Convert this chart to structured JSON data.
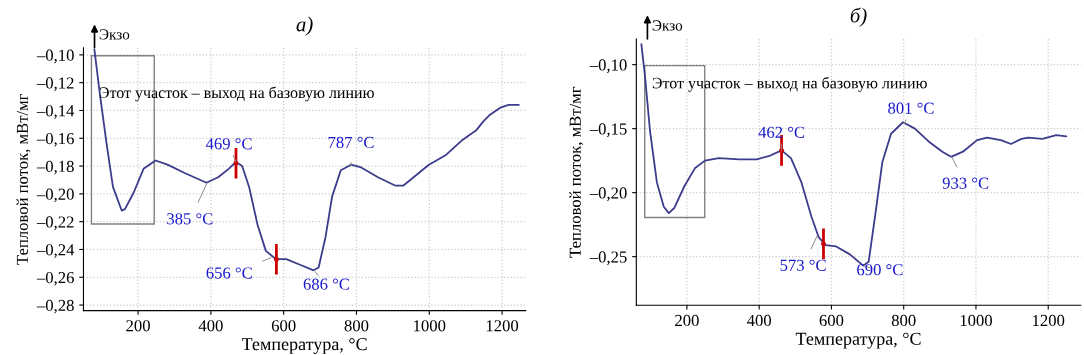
{
  "chart_data": [
    {
      "type": "line",
      "title": "а)",
      "xlabel": "Температура, °C",
      "ylabel": "Тепловой поток, мВт/мг",
      "xlim": [
        50,
        1265
      ],
      "ylim": [
        -0.284,
        -0.095
      ],
      "xticks": [
        200,
        400,
        600,
        800,
        1000,
        1200
      ],
      "yticks": [
        {
          "value": -0.28,
          "label": "–0,28"
        },
        {
          "value": -0.26,
          "label": "–0,26"
        },
        {
          "value": -0.24,
          "label": "–0,24"
        },
        {
          "value": -0.22,
          "label": "–0,22"
        },
        {
          "value": -0.2,
          "label": "–0,20"
        },
        {
          "value": -0.18,
          "label": "–0,18"
        },
        {
          "value": -0.16,
          "label": "–0,16"
        },
        {
          "value": -0.14,
          "label": "–0,14"
        },
        {
          "value": -0.12,
          "label": "–0,12"
        },
        {
          "value": -0.1,
          "label": "–0,10"
        }
      ],
      "grid": true,
      "series": [
        {
          "color": "#3c3c8c",
          "x": [
            80,
            94,
            113,
            131,
            155,
            164,
            188,
            215,
            248,
            281,
            328,
            388,
            420,
            449,
            469,
            486,
            505,
            528,
            551,
            579,
            607,
            645,
            682,
            696,
            715,
            733,
            757,
            785,
            813,
            859,
            906,
            929,
            962,
            999,
            1046,
            1092,
            1130,
            1148,
            1167,
            1195,
            1218,
            1246
          ],
          "values": [
            -0.096,
            -0.126,
            -0.163,
            -0.195,
            -0.212,
            -0.211,
            -0.199,
            -0.182,
            -0.176,
            -0.179,
            -0.185,
            -0.192,
            -0.188,
            -0.182,
            -0.177,
            -0.18,
            -0.195,
            -0.222,
            -0.241,
            -0.247,
            -0.247,
            -0.251,
            -0.255,
            -0.253,
            -0.231,
            -0.202,
            -0.183,
            -0.179,
            -0.181,
            -0.188,
            -0.194,
            -0.194,
            -0.187,
            -0.179,
            -0.172,
            -0.161,
            -0.154,
            -0.148,
            -0.143,
            -0.138,
            -0.136,
            -0.136
          ]
        },
        {
          "type": "scatter",
          "color": "#cc0000",
          "x": [
            469,
            580
          ],
          "values": [
            -0.178,
            -0.247
          ],
          "errors": [
            0.011,
            0.011
          ]
        }
      ],
      "annotations": [
        "Экзо",
        "Этот участок – выход на базовую линию",
        {
          "text": "469 °C",
          "x": 469,
          "y": -0.177
        },
        {
          "text": "385 °C",
          "x": 388,
          "y": -0.193
        },
        {
          "text": "656 °C",
          "x": 565,
          "y": -0.246
        },
        {
          "text": "686 °C",
          "x": 687,
          "y": -0.256
        },
        {
          "text": "787 °C",
          "x": 785,
          "y": -0.18
        }
      ]
    },
    {
      "type": "line",
      "title": "б)",
      "xlabel": "Температура, °C",
      "ylabel": "Тепловой поток, мВт/мг",
      "xlim": [
        60,
        1290
      ],
      "ylim": [
        -0.288,
        -0.08
      ],
      "xticks": [
        200,
        400,
        600,
        800,
        1000,
        1200
      ],
      "yticks": [
        {
          "value": -0.25,
          "label": "–0,25"
        },
        {
          "value": -0.2,
          "label": "–0,20"
        },
        {
          "value": -0.15,
          "label": "–0,15"
        },
        {
          "value": -0.1,
          "label": "–0,10"
        }
      ],
      "grid": true,
      "series": [
        {
          "color": "#3c3c8c",
          "x": [
            74,
            84,
            98,
            117,
            136,
            150,
            165,
            193,
            222,
            250,
            288,
            345,
            393,
            431,
            462,
            488,
            517,
            545,
            565,
            584,
            613,
            650,
            688,
            703,
            722,
            741,
            765,
            798,
            831,
            869,
            907,
            931,
            964,
            1003,
            1031,
            1069,
            1097,
            1126,
            1145,
            1184,
            1222,
            1250
          ],
          "values": [
            -0.084,
            -0.109,
            -0.152,
            -0.192,
            -0.211,
            -0.216,
            -0.212,
            -0.195,
            -0.181,
            -0.175,
            -0.173,
            -0.174,
            -0.174,
            -0.171,
            -0.167,
            -0.173,
            -0.192,
            -0.219,
            -0.235,
            -0.241,
            -0.242,
            -0.248,
            -0.257,
            -0.254,
            -0.216,
            -0.176,
            -0.154,
            -0.145,
            -0.15,
            -0.16,
            -0.168,
            -0.172,
            -0.168,
            -0.159,
            -0.157,
            -0.159,
            -0.162,
            -0.158,
            -0.157,
            -0.158,
            -0.155,
            -0.156
          ]
        },
        {
          "type": "scatter",
          "color": "#cc0000",
          "x": [
            462,
            578
          ],
          "values": [
            -0.167,
            -0.24
          ],
          "errors": [
            0.012,
            0.012
          ]
        }
      ],
      "annotations": [
        "Экзо",
        "Этот участок – выход на базовую линию",
        {
          "text": "462 °C",
          "x": 462,
          "y": -0.167
        },
        {
          "text": "573 °C",
          "x": 560,
          "y": -0.234
        },
        {
          "text": "690 °C",
          "x": 688,
          "y": -0.257
        },
        {
          "text": "801 °C",
          "x": 801,
          "y": -0.146
        },
        {
          "text": "933 °C",
          "x": 933,
          "y": -0.172
        }
      ]
    }
  ]
}
